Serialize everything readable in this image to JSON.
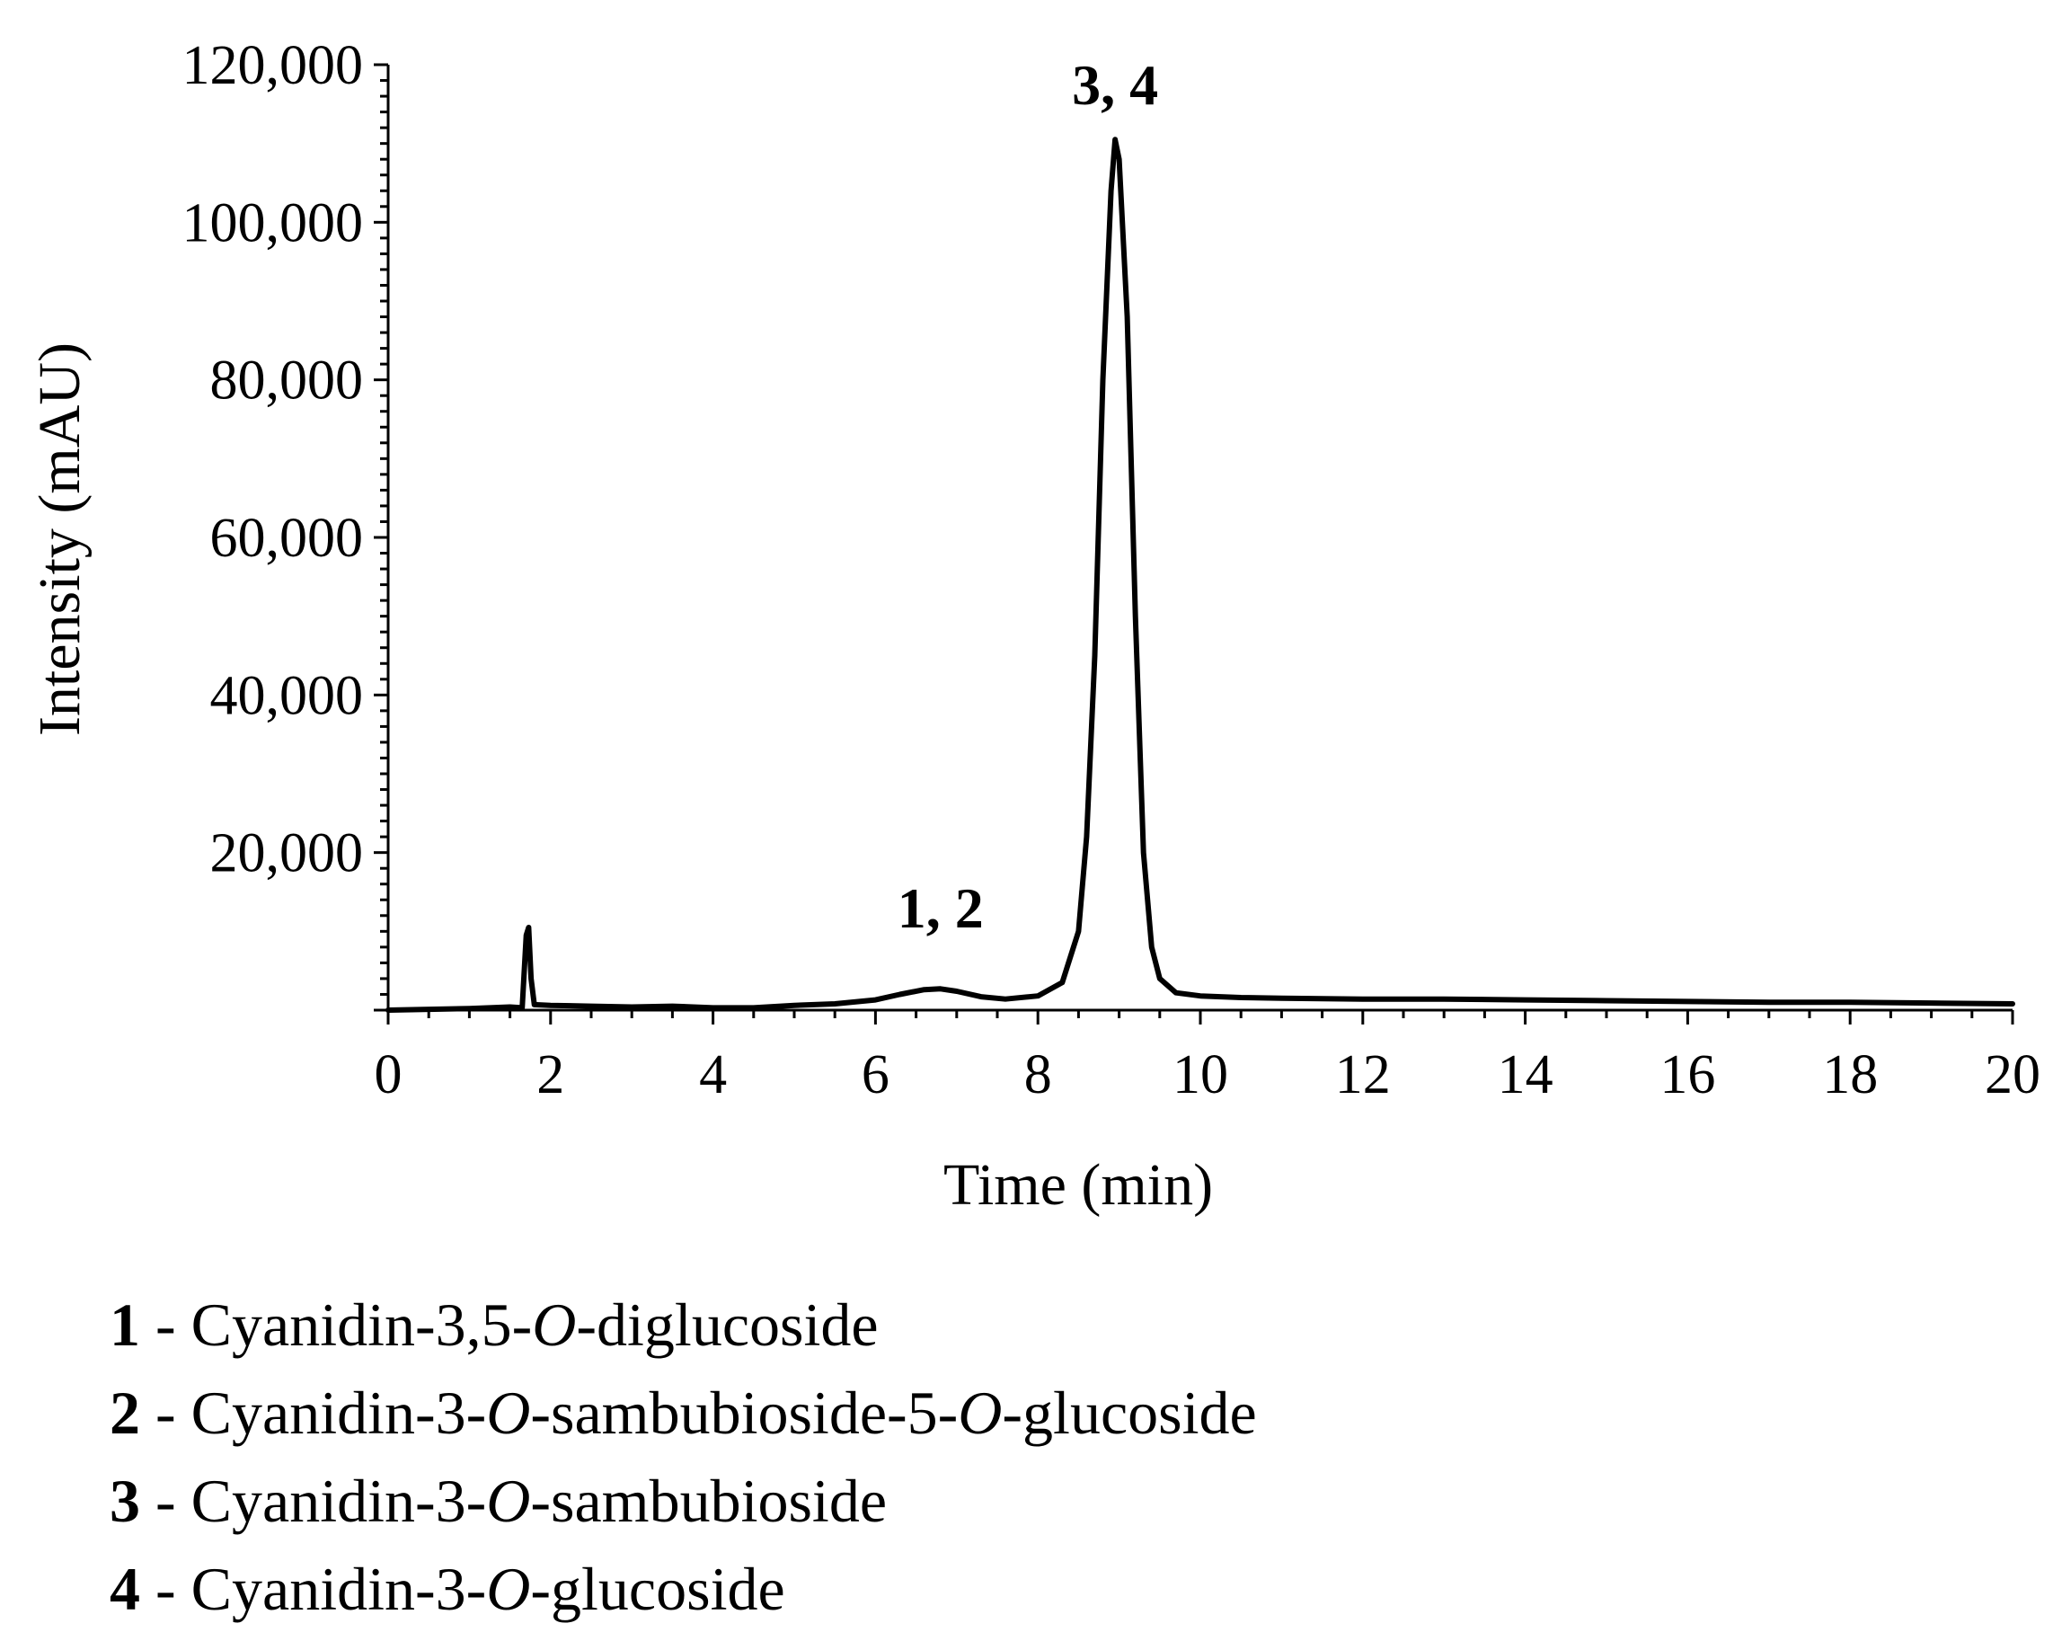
{
  "chart_data": {
    "type": "line",
    "xlabel": "Time (min)",
    "ylabel": "Intensity (mAU)",
    "xlim": [
      0,
      20
    ],
    "ylim": [
      0,
      120000
    ],
    "x_ticks": [
      0,
      2,
      4,
      6,
      8,
      10,
      12,
      14,
      16,
      18,
      20
    ],
    "x_tick_labels": [
      "0",
      "2",
      "4",
      "6",
      "8",
      "10",
      "12",
      "14",
      "16",
      "18",
      "20"
    ],
    "y_ticks": [
      20000,
      40000,
      60000,
      80000,
      100000,
      120000
    ],
    "y_tick_labels": [
      "20,000",
      "40,000",
      "60,000",
      "80,000",
      "100,000",
      "120,000"
    ],
    "grid": false,
    "series": [
      {
        "color": "#000000",
        "x": [
          0,
          0.5,
          1.0,
          1.5,
          1.65,
          1.7,
          1.73,
          1.76,
          1.8,
          2.0,
          2.5,
          3.0,
          3.5,
          4.0,
          4.5,
          5.0,
          5.5,
          6.0,
          6.3,
          6.6,
          6.8,
          7.0,
          7.3,
          7.6,
          8.0,
          8.3,
          8.5,
          8.6,
          8.7,
          8.8,
          8.9,
          8.95,
          9.0,
          9.1,
          9.2,
          9.3,
          9.4,
          9.5,
          9.7,
          10.0,
          10.5,
          11.0,
          12.0,
          13.0,
          14.0,
          15.0,
          16.0,
          17.0,
          18.0,
          19.0,
          20.0
        ],
        "y": [
          0,
          100,
          200,
          400,
          300,
          9500,
          10500,
          4000,
          700,
          600,
          500,
          400,
          500,
          300,
          300,
          600,
          800,
          1300,
          2000,
          2600,
          2700,
          2400,
          1700,
          1400,
          1800,
          3500,
          10000,
          22000,
          45000,
          80000,
          104000,
          110500,
          108000,
          88000,
          50000,
          20000,
          8000,
          4000,
          2200,
          1800,
          1600,
          1500,
          1400,
          1400,
          1300,
          1200,
          1100,
          1000,
          1000,
          900,
          800
        ]
      }
    ],
    "annotations": [
      {
        "text": "1, 2",
        "x": 6.8,
        "y": 10500
      },
      {
        "text": "3, 4",
        "x": 8.95,
        "y": 115000
      }
    ]
  },
  "legend": [
    {
      "num": "1",
      "sep": " - ",
      "parts": [
        "Cyanidin-3,5-",
        "O",
        "-diglucoside"
      ]
    },
    {
      "num": "2",
      "sep": " - ",
      "parts": [
        "Cyanidin-3-",
        "O",
        "-sambubioside-5-",
        "O",
        "-glucoside"
      ]
    },
    {
      "num": "3",
      "sep": " - ",
      "parts": [
        "Cyanidin-3-",
        "O",
        "-sambubioside"
      ]
    },
    {
      "num": "4",
      "sep": " - ",
      "parts": [
        "Cyanidin-3-",
        "O",
        "-glucoside"
      ]
    }
  ]
}
